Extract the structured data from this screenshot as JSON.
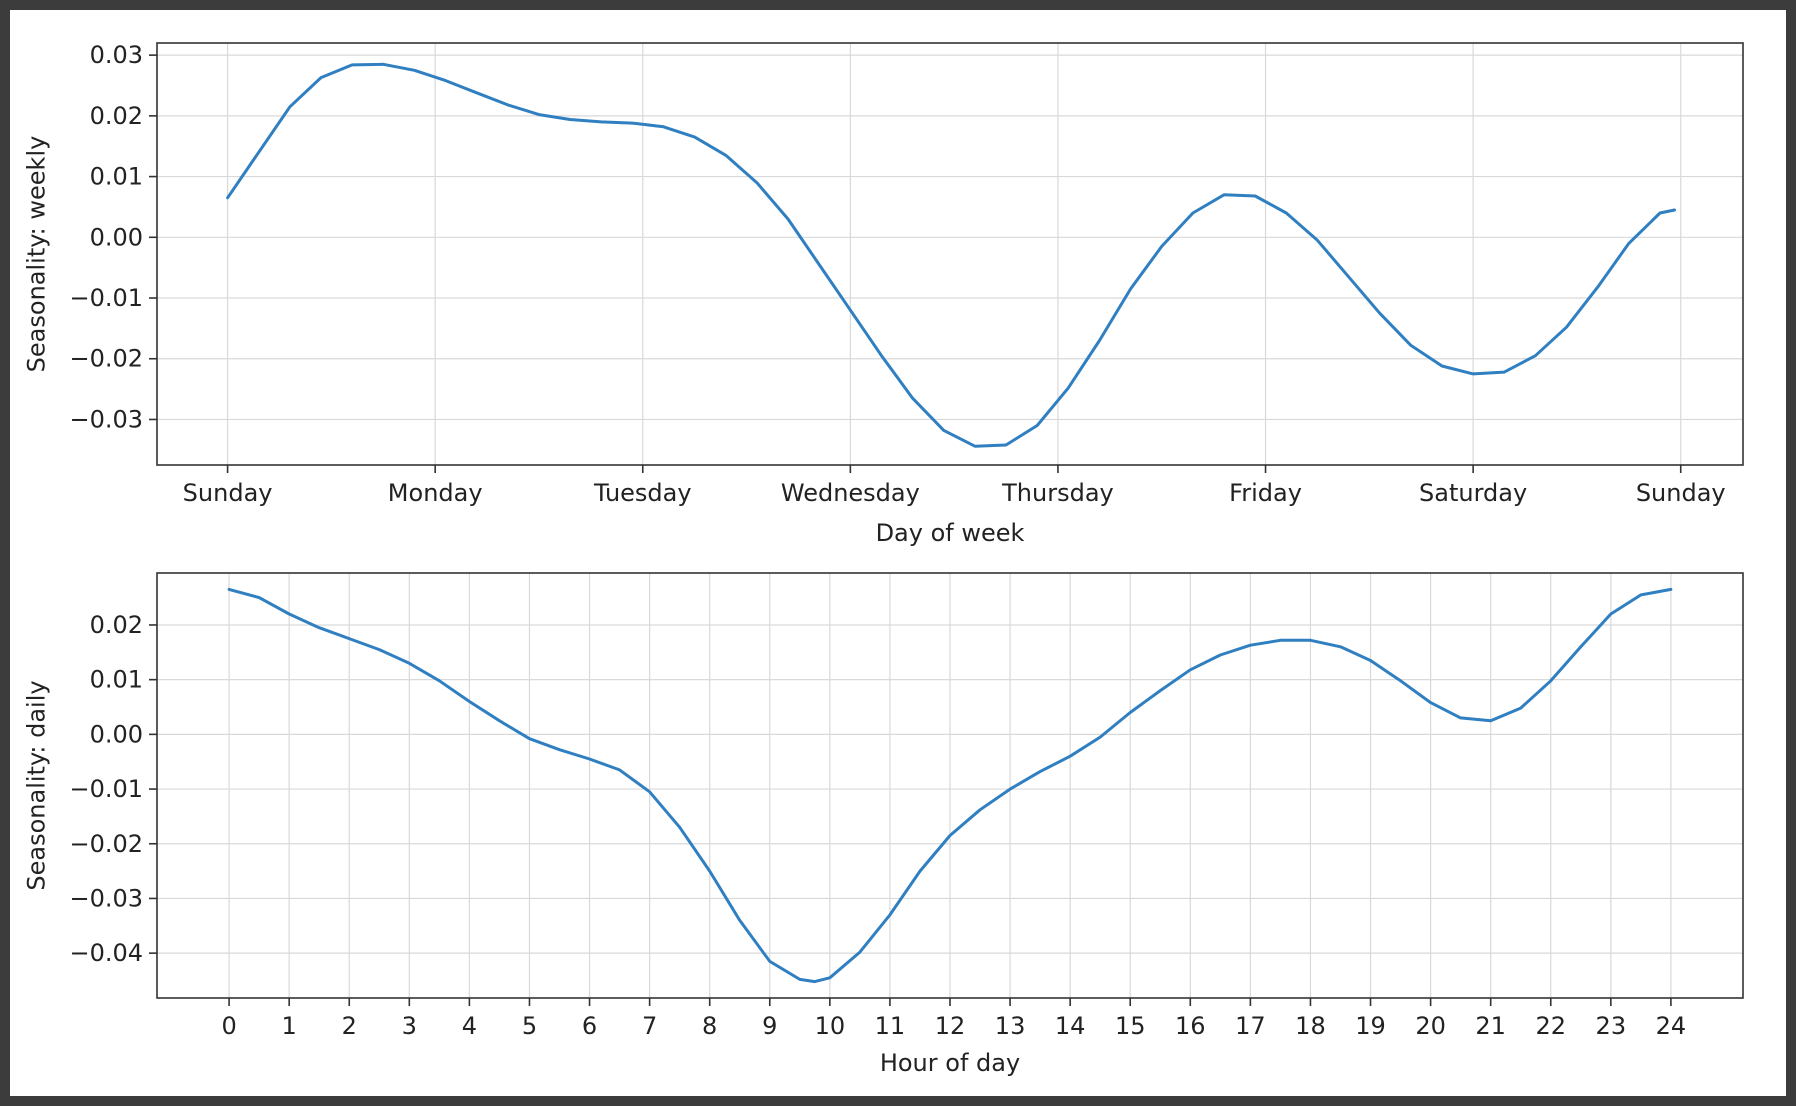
{
  "colors": {
    "series": "#2f7fc1",
    "frame": "#333333",
    "grid": "#d9d9d9"
  },
  "chart_data": [
    {
      "type": "line",
      "title": "",
      "xlabel": "Day of week",
      "ylabel": "Seasonality: weekly",
      "grid": true,
      "x_ticks": [
        {
          "x": 0,
          "label": "Sunday"
        },
        {
          "x": 1,
          "label": "Monday"
        },
        {
          "x": 2,
          "label": "Tuesday"
        },
        {
          "x": 3,
          "label": "Wednesday"
        },
        {
          "x": 4,
          "label": "Thursday"
        },
        {
          "x": 5,
          "label": "Friday"
        },
        {
          "x": 6,
          "label": "Saturday"
        },
        {
          "x": 7,
          "label": "Sunday"
        }
      ],
      "xlim": [
        -0.34,
        7.3
      ],
      "y_ticks": [
        0.03,
        0.02,
        0.01,
        0.0,
        -0.01,
        -0.02,
        -0.03
      ],
      "y_tick_labels": [
        "0.03",
        "0.02",
        "0.01",
        "0.00",
        "−0.01",
        "−0.02",
        "−0.03"
      ],
      "ylim": [
        -0.0375,
        0.032
      ],
      "series": [
        {
          "x": [
            0,
            0.15,
            0.3,
            0.45,
            0.6,
            0.75,
            0.9,
            1.05,
            1.2,
            1.35,
            1.5,
            1.65,
            1.8,
            1.95,
            2.1,
            2.25,
            2.4,
            2.55,
            2.7,
            2.85,
            3.0,
            3.15,
            3.3,
            3.45,
            3.6,
            3.75,
            3.9,
            4.05,
            4.2,
            4.35,
            4.5,
            4.65,
            4.8,
            4.95,
            5.1,
            5.25,
            5.4,
            5.55,
            5.7,
            5.85,
            6.0,
            6.15,
            6.3,
            6.45,
            6.6,
            6.75,
            6.9,
            6.97
          ],
          "y": [
            0.0065,
            0.014,
            0.0215,
            0.0263,
            0.0284,
            0.0285,
            0.0275,
            0.0258,
            0.0238,
            0.0218,
            0.0202,
            0.0194,
            0.019,
            0.0188,
            0.0182,
            0.0165,
            0.0135,
            0.009,
            0.003,
            -0.0045,
            -0.012,
            -0.0195,
            -0.0265,
            -0.0318,
            -0.0344,
            -0.0342,
            -0.031,
            -0.0248,
            -0.017,
            -0.0085,
            -0.0015,
            0.004,
            0.007,
            0.0068,
            0.004,
            -0.0005,
            -0.0065,
            -0.0125,
            -0.0178,
            -0.0212,
            -0.0225,
            -0.0222,
            -0.0195,
            -0.0148,
            -0.0082,
            -0.001,
            0.004,
            0.0045
          ]
        }
      ]
    },
    {
      "type": "line",
      "title": "",
      "xlabel": "Hour of day",
      "ylabel": "Seasonality: daily",
      "grid": true,
      "x_ticks": [
        {
          "x": 0,
          "label": "0"
        },
        {
          "x": 1,
          "label": "1"
        },
        {
          "x": 2,
          "label": "2"
        },
        {
          "x": 3,
          "label": "3"
        },
        {
          "x": 4,
          "label": "4"
        },
        {
          "x": 5,
          "label": "5"
        },
        {
          "x": 6,
          "label": "6"
        },
        {
          "x": 7,
          "label": "7"
        },
        {
          "x": 8,
          "label": "8"
        },
        {
          "x": 9,
          "label": "9"
        },
        {
          "x": 10,
          "label": "10"
        },
        {
          "x": 11,
          "label": "11"
        },
        {
          "x": 12,
          "label": "12"
        },
        {
          "x": 13,
          "label": "13"
        },
        {
          "x": 14,
          "label": "14"
        },
        {
          "x": 15,
          "label": "15"
        },
        {
          "x": 16,
          "label": "16"
        },
        {
          "x": 17,
          "label": "17"
        },
        {
          "x": 18,
          "label": "18"
        },
        {
          "x": 19,
          "label": "19"
        },
        {
          "x": 20,
          "label": "20"
        },
        {
          "x": 21,
          "label": "21"
        },
        {
          "x": 22,
          "label": "22"
        },
        {
          "x": 23,
          "label": "23"
        },
        {
          "x": 24,
          "label": "24"
        }
      ],
      "xlim": [
        -1.2,
        25.2
      ],
      "y_ticks": [
        0.02,
        0.01,
        0.0,
        -0.01,
        -0.02,
        -0.03,
        -0.04
      ],
      "y_tick_labels": [
        "0.02",
        "0.01",
        "0.00",
        "−0.01",
        "−0.02",
        "−0.03",
        "−0.04"
      ],
      "ylim": [
        -0.0482,
        0.0295
      ],
      "series": [
        {
          "x": [
            0,
            0.5,
            1,
            1.5,
            2,
            2.5,
            3,
            3.5,
            4,
            4.5,
            5,
            5.5,
            6,
            6.5,
            7,
            7.5,
            8,
            8.5,
            9,
            9.5,
            9.75,
            10,
            10.5,
            11,
            11.5,
            12,
            12.5,
            13,
            13.5,
            14,
            14.5,
            15,
            15.5,
            16,
            16.5,
            17,
            17.5,
            18,
            18.5,
            19,
            19.5,
            20,
            20.5,
            21,
            21.5,
            22,
            22.5,
            23,
            23.5,
            24
          ],
          "y": [
            0.0265,
            0.025,
            0.022,
            0.0195,
            0.0175,
            0.0155,
            0.013,
            0.0098,
            0.006,
            0.0025,
            -0.0008,
            -0.0028,
            -0.0045,
            -0.0065,
            -0.0105,
            -0.017,
            -0.025,
            -0.034,
            -0.0415,
            -0.0448,
            -0.0452,
            -0.0445,
            -0.0398,
            -0.033,
            -0.025,
            -0.0185,
            -0.0138,
            -0.01,
            -0.0068,
            -0.004,
            -0.0005,
            0.004,
            0.008,
            0.0118,
            0.0145,
            0.0163,
            0.0172,
            0.0172,
            0.016,
            0.0135,
            0.0098,
            0.0058,
            0.003,
            0.0025,
            0.0048,
            0.0098,
            0.016,
            0.022,
            0.0255,
            0.0265
          ]
        }
      ]
    }
  ]
}
